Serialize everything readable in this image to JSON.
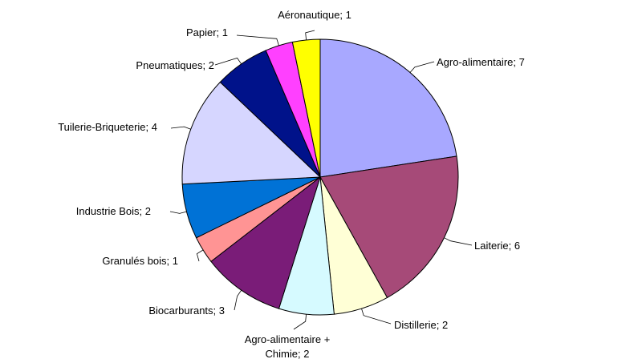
{
  "chart_data": {
    "type": "pie",
    "title": "",
    "slices": [
      {
        "label": "Agro-alimentaire; 7",
        "name": "Agro-alimentaire",
        "value": 7,
        "color": "#A8A8FF"
      },
      {
        "label": "Laiterie; 6",
        "name": "Laiterie",
        "value": 6,
        "color": "#A64A78"
      },
      {
        "label": "Distillerie; 2",
        "name": "Distillerie",
        "value": 2,
        "color": "#FFFFD6"
      },
      {
        "label": "Agro-alimentaire + Chimie; 2",
        "line1": "Agro-alimentaire +",
        "line2": "Chimie; 2",
        "name": "Agro-alimentaire + Chimie",
        "value": 2,
        "color": "#D6FAFF"
      },
      {
        "label": "Biocarburants; 3",
        "name": "Biocarburants",
        "value": 3,
        "color": "#7A1C78"
      },
      {
        "label": "Granulés bois; 1",
        "name": "Granulés bois",
        "value": 1,
        "color": "#FF9494"
      },
      {
        "label": "Industrie Bois; 2",
        "name": "Industrie Bois",
        "value": 2,
        "color": "#0072D6"
      },
      {
        "label": "Tuilerie-Briqueterie; 4",
        "name": "Tuilerie-Briqueterie",
        "value": 4,
        "color": "#D6D6FF"
      },
      {
        "label": "Pneumatiques; 2",
        "name": "Pneumatiques",
        "value": 2,
        "color": "#00128A"
      },
      {
        "label": "Papier; 1",
        "name": "Papier",
        "value": 1,
        "color": "#FF40FF"
      },
      {
        "label": "Aéronautique; 1",
        "name": "Aéronautique",
        "value": 1,
        "color": "#FFFF00"
      }
    ],
    "legend": "none",
    "start_angle_deg": 0,
    "direction": "clockwise"
  }
}
